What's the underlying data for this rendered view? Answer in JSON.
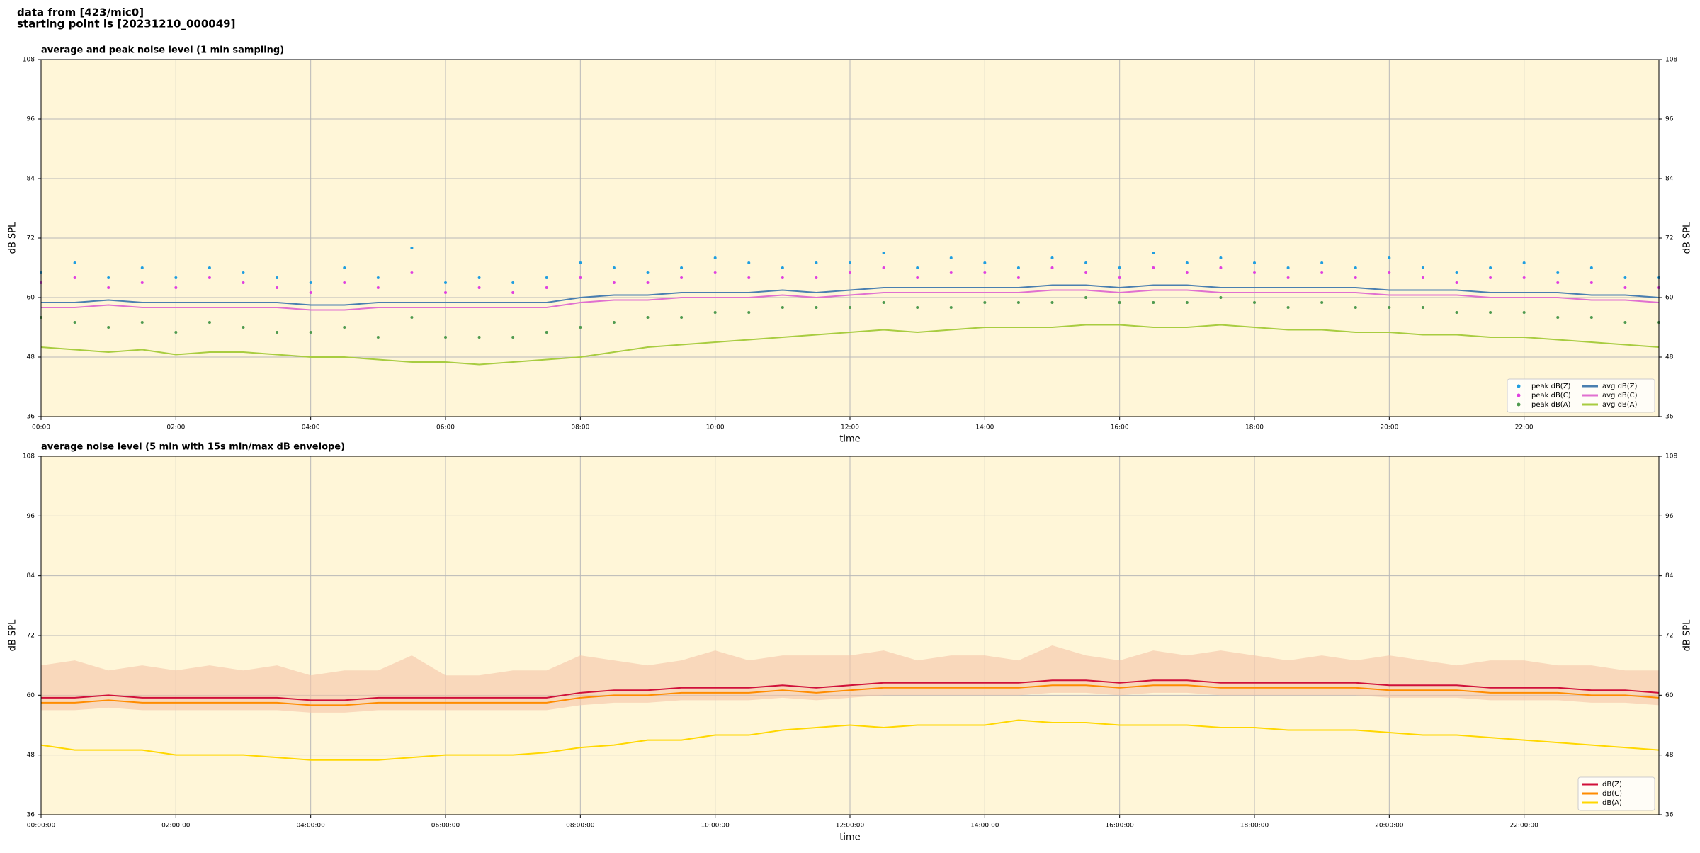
{
  "header": {
    "lines": [
      "data from [423/mic0]",
      "starting point is [20231210_000049]"
    ]
  },
  "chart_data": [
    {
      "type": "line",
      "title": "average and peak noise level (1 min sampling)",
      "xlabel": "time",
      "ylabel": "dB SPL",
      "x": [
        0,
        0.5,
        1,
        1.5,
        2,
        2.5,
        3,
        3.5,
        4,
        4.5,
        5,
        5.5,
        6,
        6.5,
        7,
        7.5,
        8,
        8.5,
        9,
        9.5,
        10,
        10.5,
        11,
        11.5,
        12,
        12.5,
        13,
        13.5,
        14,
        14.5,
        15,
        15.5,
        16,
        16.5,
        17,
        17.5,
        18,
        18.5,
        19,
        19.5,
        20,
        20.5,
        21,
        21.5,
        22,
        22.5,
        23,
        23.5,
        24
      ],
      "xlim": [
        0,
        24
      ],
      "xticks": [
        {
          "value": 0,
          "label": "00:00"
        },
        {
          "value": 2,
          "label": "02:00"
        },
        {
          "value": 4,
          "label": "04:00"
        },
        {
          "value": 6,
          "label": "06:00"
        },
        {
          "value": 8,
          "label": "08:00"
        },
        {
          "value": 10,
          "label": "10:00"
        },
        {
          "value": 12,
          "label": "12:00"
        },
        {
          "value": 14,
          "label": "14:00"
        },
        {
          "value": 16,
          "label": "16:00"
        },
        {
          "value": 18,
          "label": "18:00"
        },
        {
          "value": 20,
          "label": "20:00"
        },
        {
          "value": 22,
          "label": "22:00"
        }
      ],
      "ylim": [
        36,
        108
      ],
      "yticks": [
        36,
        48,
        60,
        72,
        84,
        96,
        108
      ],
      "grid": true,
      "legend": "lower right",
      "legend_columns": 2,
      "series": [
        {
          "name": "peak dB(Z)",
          "style": "scatter",
          "color": "#1f9ee0",
          "values": [
            65,
            67,
            64,
            66,
            64,
            66,
            65,
            64,
            63,
            66,
            64,
            70,
            63,
            64,
            63,
            64,
            67,
            66,
            65,
            66,
            68,
            67,
            66,
            67,
            67,
            69,
            66,
            68,
            67,
            66,
            68,
            67,
            66,
            69,
            67,
            68,
            67,
            66,
            67,
            66,
            68,
            66,
            65,
            66,
            67,
            65,
            66,
            64,
            64
          ]
        },
        {
          "name": "peak dB(C)",
          "style": "scatter",
          "color": "#e040e0",
          "values": [
            63,
            64,
            62,
            63,
            62,
            64,
            63,
            62,
            61,
            63,
            62,
            65,
            61,
            62,
            61,
            62,
            64,
            63,
            63,
            64,
            65,
            64,
            64,
            64,
            65,
            66,
            64,
            65,
            65,
            64,
            66,
            65,
            64,
            66,
            65,
            66,
            65,
            64,
            65,
            64,
            65,
            64,
            63,
            64,
            64,
            63,
            63,
            62,
            62
          ]
        },
        {
          "name": "peak dB(A)",
          "style": "scatter",
          "color": "#4f9a4f",
          "values": [
            56,
            55,
            54,
            55,
            53,
            55,
            54,
            53,
            53,
            54,
            52,
            56,
            52,
            52,
            52,
            53,
            54,
            55,
            56,
            56,
            57,
            57,
            58,
            58,
            58,
            59,
            58,
            58,
            59,
            59,
            59,
            60,
            59,
            59,
            59,
            60,
            59,
            58,
            59,
            58,
            58,
            58,
            57,
            57,
            57,
            56,
            56,
            55,
            55
          ]
        },
        {
          "name": "avg dB(Z)",
          "style": "line",
          "color": "#4a7fb0",
          "values": [
            59,
            59,
            59.5,
            59,
            59,
            59,
            59,
            59,
            58.5,
            58.5,
            59,
            59,
            59,
            59,
            59,
            59,
            60,
            60.5,
            60.5,
            61,
            61,
            61,
            61.5,
            61,
            61.5,
            62,
            62,
            62,
            62,
            62,
            62.5,
            62.5,
            62,
            62.5,
            62.5,
            62,
            62,
            62,
            62,
            62,
            61.5,
            61.5,
            61.5,
            61,
            61,
            61,
            60.5,
            60.5,
            60
          ]
        },
        {
          "name": "avg dB(C)",
          "style": "line",
          "color": "#e070d0",
          "values": [
            58,
            58,
            58.5,
            58,
            58,
            58,
            58,
            58,
            57.5,
            57.5,
            58,
            58,
            58,
            58,
            58,
            58,
            59,
            59.5,
            59.5,
            60,
            60,
            60,
            60.5,
            60,
            60.5,
            61,
            61,
            61,
            61,
            61,
            61.5,
            61.5,
            61,
            61.5,
            61.5,
            61,
            61,
            61,
            61,
            61,
            60.5,
            60.5,
            60.5,
            60,
            60,
            60,
            59.5,
            59.5,
            59
          ]
        },
        {
          "name": "avg dB(A)",
          "style": "line",
          "color": "#a8cc40",
          "values": [
            50,
            49.5,
            49,
            49.5,
            48.5,
            49,
            49,
            48.5,
            48,
            48,
            47.5,
            47,
            47,
            46.5,
            47,
            47.5,
            48,
            49,
            50,
            50.5,
            51,
            51.5,
            52,
            52.5,
            53,
            53.5,
            53,
            53.5,
            54,
            54,
            54,
            54.5,
            54.5,
            54,
            54,
            54.5,
            54,
            53.5,
            53.5,
            53,
            53,
            52.5,
            52.5,
            52,
            52,
            51.5,
            51,
            50.5,
            50
          ]
        }
      ]
    },
    {
      "type": "line",
      "title": "average noise level (5 min with 15s min/max dB envelope)",
      "xlabel": "time",
      "ylabel": "dB SPL",
      "x": [
        0,
        0.5,
        1,
        1.5,
        2,
        2.5,
        3,
        3.5,
        4,
        4.5,
        5,
        5.5,
        6,
        6.5,
        7,
        7.5,
        8,
        8.5,
        9,
        9.5,
        10,
        10.5,
        11,
        11.5,
        12,
        12.5,
        13,
        13.5,
        14,
        14.5,
        15,
        15.5,
        16,
        16.5,
        17,
        17.5,
        18,
        18.5,
        19,
        19.5,
        20,
        20.5,
        21,
        21.5,
        22,
        22.5,
        23,
        23.5,
        24
      ],
      "xlim": [
        0,
        24
      ],
      "xticks": [
        {
          "value": 0,
          "label": "00:00:00"
        },
        {
          "value": 2,
          "label": "02:00:00"
        },
        {
          "value": 4,
          "label": "04:00:00"
        },
        {
          "value": 6,
          "label": "06:00:00"
        },
        {
          "value": 8,
          "label": "08:00:00"
        },
        {
          "value": 10,
          "label": "10:00:00"
        },
        {
          "value": 12,
          "label": "12:00:00"
        },
        {
          "value": 14,
          "label": "14:00:00"
        },
        {
          "value": 16,
          "label": "16:00:00"
        },
        {
          "value": 18,
          "label": "18:00:00"
        },
        {
          "value": 20,
          "label": "20:00:00"
        },
        {
          "value": 22,
          "label": "22:00:00"
        }
      ],
      "ylim": [
        36,
        108
      ],
      "yticks": [
        36,
        48,
        60,
        72,
        84,
        96,
        108
      ],
      "grid": true,
      "legend": "lower right",
      "legend_columns": 1,
      "envelope": {
        "color": "#f5c4a8",
        "upper": [
          66,
          67,
          65,
          66,
          65,
          66,
          65,
          66,
          64,
          65,
          65,
          68,
          64,
          64,
          65,
          65,
          68,
          67,
          66,
          67,
          69,
          67,
          68,
          68,
          68,
          69,
          67,
          68,
          68,
          67,
          70,
          68,
          67,
          69,
          68,
          69,
          68,
          67,
          68,
          67,
          68,
          67,
          66,
          67,
          67,
          66,
          66,
          65,
          65
        ],
        "lower": [
          57,
          57,
          57.5,
          57,
          57,
          57,
          57,
          57,
          56.5,
          56.5,
          57,
          57,
          57,
          57,
          57,
          57,
          58,
          58.5,
          58.5,
          59,
          59,
          59,
          59.5,
          59,
          59.5,
          60,
          60,
          60,
          60,
          60,
          60.5,
          60.5,
          60,
          60.5,
          60.5,
          60,
          60,
          60,
          60,
          60,
          59.5,
          59.5,
          59.5,
          59,
          59,
          59,
          58.5,
          58.5,
          58
        ]
      },
      "series": [
        {
          "name": "dB(Z)",
          "style": "line",
          "color": "#d0103a",
          "values": [
            59.5,
            59.5,
            60,
            59.5,
            59.5,
            59.5,
            59.5,
            59.5,
            59,
            59,
            59.5,
            59.5,
            59.5,
            59.5,
            59.5,
            59.5,
            60.5,
            61,
            61,
            61.5,
            61.5,
            61.5,
            62,
            61.5,
            62,
            62.5,
            62.5,
            62.5,
            62.5,
            62.5,
            63,
            63,
            62.5,
            63,
            63,
            62.5,
            62.5,
            62.5,
            62.5,
            62.5,
            62,
            62,
            62,
            61.5,
            61.5,
            61.5,
            61,
            61,
            60.5
          ]
        },
        {
          "name": "dB(C)",
          "style": "line",
          "color": "#ff8c00",
          "values": [
            58.5,
            58.5,
            59,
            58.5,
            58.5,
            58.5,
            58.5,
            58.5,
            58,
            58,
            58.5,
            58.5,
            58.5,
            58.5,
            58.5,
            58.5,
            59.5,
            60,
            60,
            60.5,
            60.5,
            60.5,
            61,
            60.5,
            61,
            61.5,
            61.5,
            61.5,
            61.5,
            61.5,
            62,
            62,
            61.5,
            62,
            62,
            61.5,
            61.5,
            61.5,
            61.5,
            61.5,
            61,
            61,
            61,
            60.5,
            60.5,
            60.5,
            60,
            60,
            59.5
          ]
        },
        {
          "name": "dB(A)",
          "style": "line",
          "color": "#ffd700",
          "values": [
            50,
            49,
            49,
            49,
            48,
            48,
            48,
            47.5,
            47,
            47,
            47,
            47.5,
            48,
            48,
            48,
            48.5,
            49.5,
            50,
            51,
            51,
            52,
            52,
            53,
            53.5,
            54,
            53.5,
            54,
            54,
            54,
            55,
            54.5,
            54.5,
            54,
            54,
            54,
            53.5,
            53.5,
            53,
            53,
            53,
            52.5,
            52,
            52,
            51.5,
            51,
            50.5,
            50,
            49.5,
            49
          ]
        }
      ]
    }
  ]
}
